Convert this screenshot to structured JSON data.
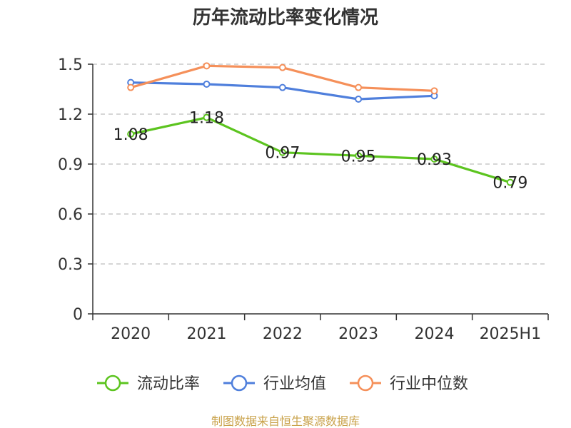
{
  "chart_data": {
    "type": "line",
    "title": "历年流动比率变化情况",
    "categories": [
      "2020",
      "2021",
      "2022",
      "2023",
      "2024",
      "2025H1"
    ],
    "ylim": [
      0,
      1.5
    ],
    "yticks": [
      "0",
      "0.3",
      "0.6",
      "0.9",
      "1.2",
      "1.5"
    ],
    "grid": true,
    "legend_position": "bottom",
    "series": [
      {
        "name": "流动比率",
        "color": "#5cc41f",
        "values": [
          1.08,
          1.18,
          0.97,
          0.95,
          0.93,
          0.79
        ],
        "labels": [
          "1.08",
          "1.18",
          "0.97",
          "0.95",
          "0.93",
          "0.79"
        ]
      },
      {
        "name": "行业均值",
        "color": "#4f7fdc",
        "values": [
          1.39,
          1.38,
          1.36,
          1.29,
          1.31,
          null
        ]
      },
      {
        "name": "行业中位数",
        "color": "#f5905a",
        "values": [
          1.36,
          1.49,
          1.48,
          1.36,
          1.34,
          null
        ]
      }
    ]
  },
  "footer": {
    "source": "制图数据来自恒生聚源数据库"
  }
}
